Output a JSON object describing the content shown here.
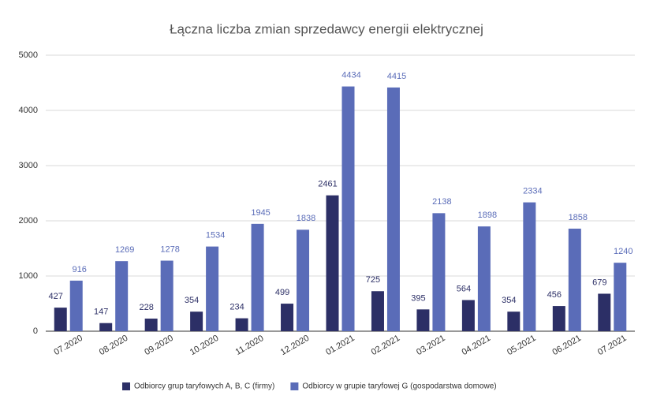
{
  "chart_data": {
    "type": "bar",
    "title": "Łączna liczba zmian sprzedawcy energii elektrycznej",
    "categories": [
      "07.2020",
      "08.2020",
      "09.2020",
      "10.2020",
      "11.2020",
      "12.2020",
      "01.2021",
      "02.2021",
      "03.2021",
      "04.2021",
      "05.2021",
      "06.2021",
      "07.2021"
    ],
    "series": [
      {
        "name": "Odbiorcy grup taryfowych A, B, C (firmy)",
        "color": "#2c2f66",
        "values": [
          427,
          147,
          228,
          354,
          234,
          499,
          2461,
          725,
          395,
          564,
          354,
          456,
          679
        ]
      },
      {
        "name": "Odbiorcy w grupie taryfowej G (gospodarstwa domowe)",
        "color": "#5a6cb8",
        "values": [
          916,
          1269,
          1278,
          1534,
          1945,
          1838,
          4434,
          4415,
          2138,
          1898,
          2334,
          1858,
          1240
        ]
      }
    ],
    "ylim": [
      0,
      5000
    ],
    "yticks": [
      0,
      1000,
      2000,
      3000,
      4000,
      5000
    ],
    "grid": true,
    "legend": "bottom"
  }
}
